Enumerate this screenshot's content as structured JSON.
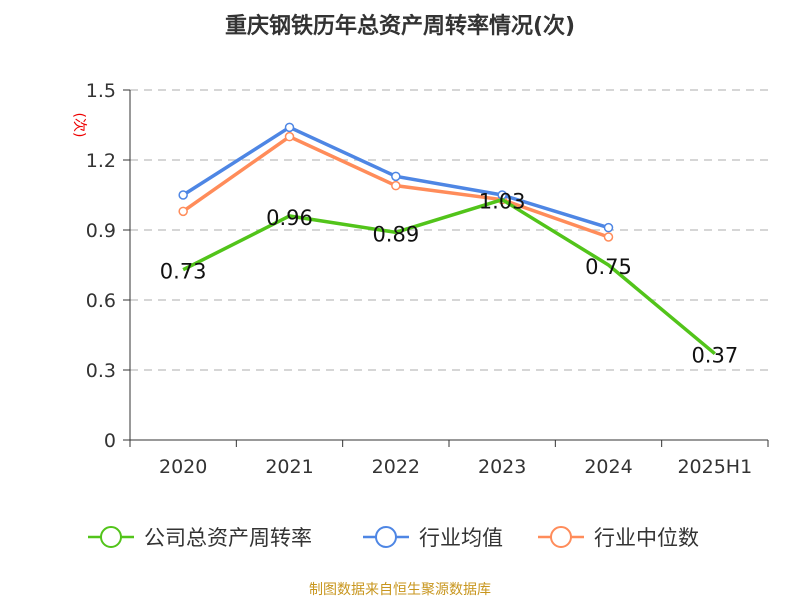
{
  "title": "重庆钢铁历年总资产周转率情况(次)",
  "source": "制图数据来自恒生聚源数据库",
  "chart_data": {
    "type": "line",
    "title": "重庆钢铁历年总资产周转率情况(次)",
    "ylabel": "(次)",
    "ylim": [
      0,
      1.5
    ],
    "yticks": [
      "0",
      "0.3",
      "0.6",
      "0.9",
      "1.2",
      "1.5"
    ],
    "grid": true,
    "legend": "bottom",
    "categories": [
      "2020",
      "2021",
      "2022",
      "2023",
      "2024",
      "2025H1"
    ],
    "series": [
      {
        "name": "公司总资产周转率",
        "color": "#52c41a",
        "values": [
          0.73,
          0.96,
          0.89,
          1.03,
          0.75,
          0.37
        ],
        "labels": true
      },
      {
        "name": "行业均值",
        "color": "#4e86e4",
        "values": [
          1.05,
          1.34,
          1.13,
          1.05,
          0.91,
          null
        ]
      },
      {
        "name": "行业中位数",
        "color": "#ff8c5a",
        "values": [
          0.98,
          1.3,
          1.09,
          1.03,
          0.87,
          null
        ]
      }
    ]
  }
}
